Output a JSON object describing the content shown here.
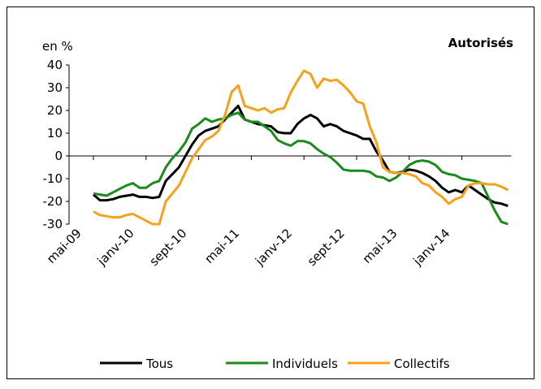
{
  "chart_data": {
    "type": "line",
    "title": "Autorisés",
    "ylabel": "en %",
    "categories": [
      "mai-09",
      null,
      null,
      null,
      null,
      null,
      null,
      null,
      "janv-10",
      null,
      null,
      null,
      null,
      null,
      null,
      null,
      "sept-10",
      null,
      null,
      null,
      null,
      null,
      null,
      null,
      "mai-11",
      null,
      null,
      null,
      null,
      null,
      null,
      null,
      "janv-12",
      null,
      null,
      null,
      null,
      null,
      null,
      null,
      "sept-12",
      null,
      null,
      null,
      null,
      null,
      null,
      null,
      "mai-13",
      null,
      null,
      null,
      null,
      null,
      null,
      null,
      "janv-14",
      null,
      null,
      null,
      null,
      null,
      null,
      null
    ],
    "series": [
      {
        "name": "Tous",
        "color": "#000000",
        "values": [
          -17,
          -19.5,
          -19.5,
          -19,
          -18,
          -17.5,
          -17,
          -18,
          -18,
          -18.5,
          -18,
          -11,
          -8,
          -5,
          0,
          5,
          9,
          11,
          12,
          13,
          16,
          19,
          22,
          16,
          15,
          14,
          13.5,
          13,
          10.5,
          10,
          10,
          14,
          16.5,
          18,
          16.5,
          13,
          14,
          13,
          11,
          10,
          9,
          7.5,
          7.5,
          2,
          -2,
          -7,
          -7.5,
          -7,
          -6,
          -6.5,
          -7.5,
          -9,
          -11,
          -14,
          -16,
          -15,
          -16,
          -13,
          -15,
          -17,
          -19,
          -20.5,
          -21,
          -22
        ]
      },
      {
        "name": "Individuels",
        "color": "#1a8a1a",
        "values": [
          -16.5,
          -17,
          -17.5,
          -16,
          -14.5,
          -13,
          -12,
          -14,
          -14,
          -12,
          -11,
          -5,
          -1,
          2,
          6,
          12,
          14,
          16.5,
          15,
          16,
          16.5,
          18,
          19,
          16,
          15,
          15,
          13,
          11,
          7,
          5.5,
          4.5,
          6.5,
          6.5,
          5.5,
          3,
          1,
          -0.5,
          -3,
          -6,
          -6.5,
          -6.5,
          -6.5,
          -7,
          -9,
          -9.5,
          -11,
          -9.5,
          -7,
          -4,
          -2.5,
          -2,
          -2.5,
          -4,
          -7,
          -8,
          -8.5,
          -10,
          -10.5,
          -11,
          -12,
          -18,
          -24,
          -29,
          -30
        ]
      },
      {
        "name": "Collectifs",
        "color": "#f7a11a",
        "values": [
          -24.5,
          -26,
          -26.5,
          -27,
          -27,
          -26,
          -25.5,
          -27,
          -28.5,
          -30,
          -30,
          -20,
          -16.5,
          -13,
          -7,
          -1,
          3,
          7,
          8.5,
          11,
          18,
          28,
          31,
          22,
          21,
          20,
          21,
          19,
          20.5,
          21,
          28,
          33,
          37.5,
          36,
          30,
          34,
          33,
          33.5,
          31,
          28,
          24,
          23,
          13,
          6,
          -5,
          -7,
          -7.5,
          -7.5,
          -8,
          -9,
          -12,
          -13,
          -16,
          -18,
          -21,
          -19,
          -18,
          -13,
          -12,
          -12,
          -12.5,
          -12.5,
          -13.5,
          -15
        ]
      }
    ],
    "ylim": [
      -30,
      40
    ],
    "yticks": [
      -30,
      -20,
      -10,
      0,
      10,
      20,
      30,
      40
    ],
    "grid": false
  }
}
